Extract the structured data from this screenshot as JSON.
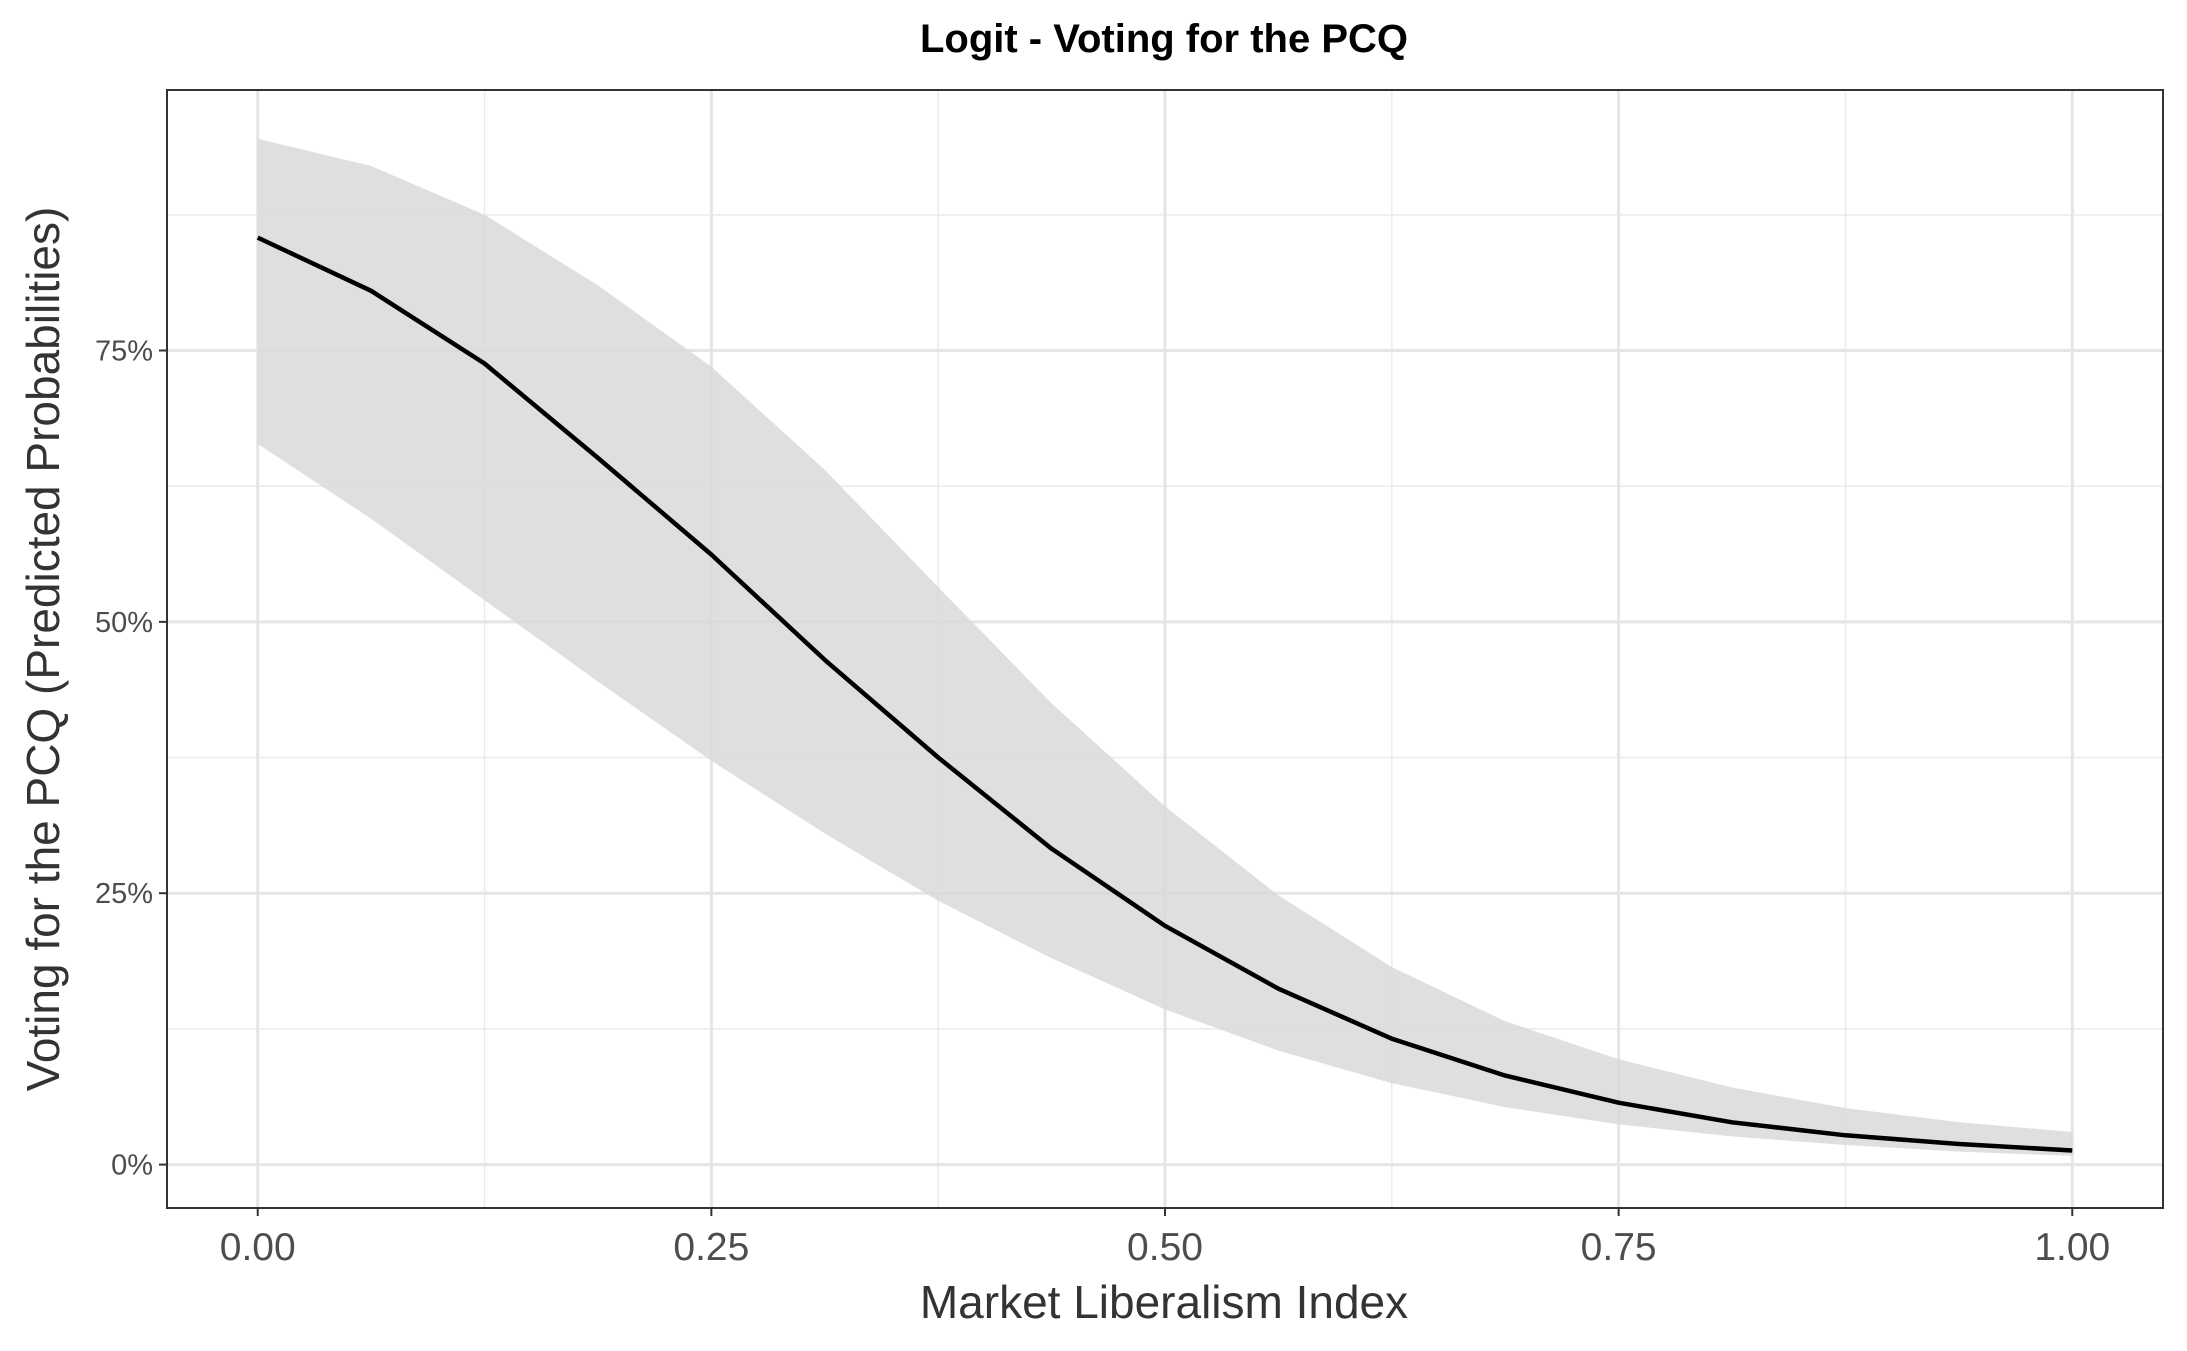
{
  "chart_data": {
    "type": "line",
    "title": "Logit - Voting for the PCQ",
    "xlabel": "Market Liberalism Index",
    "ylabel": "Voting for the PCQ (Predicted Probabilities)",
    "xlim": [
      -0.05,
      1.05
    ],
    "ylim": [
      -0.04,
      0.99
    ],
    "x_ticks": [
      0.0,
      0.25,
      0.5,
      0.75,
      1.0
    ],
    "x_tick_labels": [
      "0.00",
      "0.25",
      "0.50",
      "0.75",
      "1.00"
    ],
    "y_ticks": [
      0.0,
      0.25,
      0.5,
      0.75
    ],
    "y_tick_labels": [
      "0%",
      "25%",
      "50%",
      "75%"
    ],
    "grid": true,
    "legend": "none",
    "colors": {
      "line": "#000000",
      "ribbon": "#d9d9d9",
      "grid": "#e5e5e5",
      "panel_border": "#333333"
    },
    "series": [
      {
        "x": [
          0.0,
          0.0625,
          0.125,
          0.1875,
          0.25,
          0.3125,
          0.375,
          0.4375,
          0.5,
          0.5625,
          0.625,
          0.6875,
          0.75,
          0.8125,
          0.875,
          0.9375,
          1.0
        ],
        "y": [
          0.854,
          0.805,
          0.738,
          0.651,
          0.562,
          0.465,
          0.375,
          0.291,
          0.22,
          0.162,
          0.116,
          0.082,
          0.057,
          0.039,
          0.027,
          0.019,
          0.013
        ],
        "lower": [
          0.664,
          0.595,
          0.52,
          0.445,
          0.372,
          0.305,
          0.243,
          0.19,
          0.143,
          0.105,
          0.075,
          0.053,
          0.037,
          0.026,
          0.018,
          0.012,
          0.008
        ],
        "upper": [
          0.945,
          0.92,
          0.875,
          0.81,
          0.735,
          0.64,
          0.532,
          0.425,
          0.33,
          0.248,
          0.182,
          0.132,
          0.097,
          0.071,
          0.052,
          0.039,
          0.03
        ]
      }
    ]
  }
}
